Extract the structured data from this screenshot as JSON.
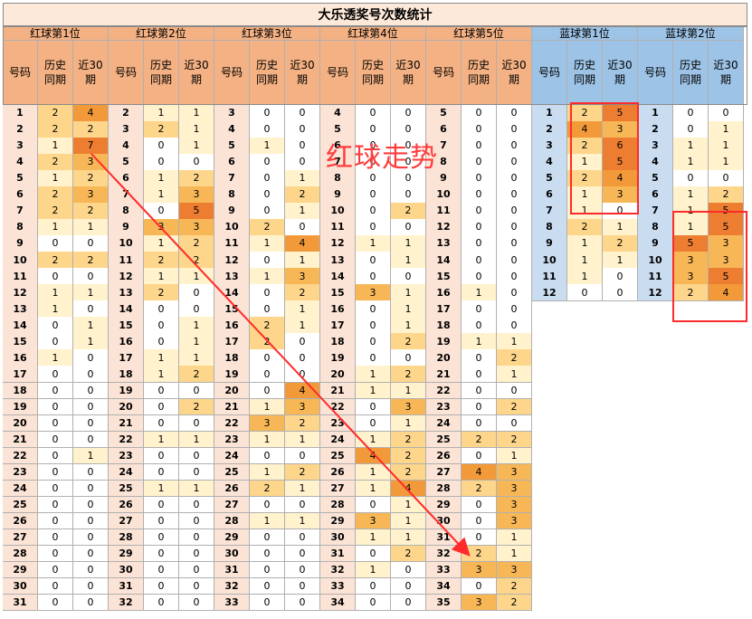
{
  "title": "大乐透奖号次数统计",
  "annotation": "红球走势",
  "groups": [
    {
      "name": "红球第1位",
      "kind": "red"
    },
    {
      "name": "红球第2位",
      "kind": "red"
    },
    {
      "name": "红球第3位",
      "kind": "red"
    },
    {
      "name": "红球第4位",
      "kind": "red"
    },
    {
      "name": "红球第5位",
      "kind": "red"
    },
    {
      "name": "蓝球第1位",
      "kind": "blue"
    },
    {
      "name": "蓝球第2位",
      "kind": "blue"
    }
  ],
  "col_headers": [
    "号码",
    "历史\n同期",
    "近30\n期"
  ],
  "colors": {
    "title_bg": "#fde9d9",
    "red_header": "#f4b183",
    "blue_header": "#9dc3e6",
    "red_num_bg": "#fbe3d6",
    "blue_num_bg": "#c9dcf0",
    "value_scale": [
      "#ffffff",
      "#fff2cc",
      "#fdd68b",
      "#f8b757",
      "#f29a3a",
      "#ed7d31"
    ],
    "highlight": "#ff2a2a"
  },
  "rows": {
    "red1": [
      [
        1,
        2,
        4
      ],
      [
        2,
        2,
        2
      ],
      [
        3,
        1,
        7
      ],
      [
        4,
        2,
        3
      ],
      [
        5,
        1,
        2
      ],
      [
        6,
        2,
        3
      ],
      [
        7,
        2,
        2
      ],
      [
        8,
        1,
        1
      ],
      [
        9,
        0,
        0
      ],
      [
        10,
        2,
        2
      ],
      [
        11,
        0,
        0
      ],
      [
        12,
        1,
        1
      ],
      [
        13,
        1,
        0
      ],
      [
        14,
        0,
        1
      ],
      [
        15,
        0,
        1
      ],
      [
        16,
        1,
        0
      ],
      [
        17,
        0,
        0
      ],
      [
        18,
        0,
        0
      ],
      [
        19,
        0,
        0
      ],
      [
        20,
        0,
        0
      ],
      [
        21,
        0,
        0
      ],
      [
        22,
        0,
        1
      ],
      [
        23,
        0,
        0
      ],
      [
        24,
        0,
        0
      ],
      [
        25,
        0,
        0
      ],
      [
        26,
        0,
        0
      ],
      [
        27,
        0,
        0
      ],
      [
        28,
        0,
        0
      ],
      [
        29,
        0,
        0
      ],
      [
        30,
        0,
        0
      ],
      [
        31,
        0,
        0
      ]
    ],
    "red2": [
      [
        2,
        1,
        1
      ],
      [
        3,
        2,
        1
      ],
      [
        4,
        0,
        1
      ],
      [
        5,
        0,
        0
      ],
      [
        6,
        1,
        2
      ],
      [
        7,
        1,
        3
      ],
      [
        8,
        0,
        5
      ],
      [
        9,
        3,
        3
      ],
      [
        10,
        1,
        2
      ],
      [
        11,
        2,
        2
      ],
      [
        12,
        1,
        1
      ],
      [
        13,
        2,
        0
      ],
      [
        14,
        0,
        0
      ],
      [
        15,
        0,
        1
      ],
      [
        16,
        0,
        1
      ],
      [
        17,
        1,
        1
      ],
      [
        18,
        1,
        2
      ],
      [
        19,
        0,
        0
      ],
      [
        20,
        0,
        2
      ],
      [
        21,
        0,
        0
      ],
      [
        22,
        1,
        1
      ],
      [
        23,
        0,
        0
      ],
      [
        24,
        0,
        0
      ],
      [
        25,
        1,
        1
      ],
      [
        26,
        0,
        0
      ],
      [
        27,
        0,
        0
      ],
      [
        28,
        0,
        0
      ],
      [
        29,
        0,
        0
      ],
      [
        30,
        0,
        0
      ],
      [
        31,
        0,
        0
      ],
      [
        32,
        0,
        0
      ]
    ],
    "red3": [
      [
        3,
        0,
        0
      ],
      [
        4,
        0,
        0
      ],
      [
        5,
        1,
        0
      ],
      [
        6,
        0,
        0
      ],
      [
        7,
        0,
        1
      ],
      [
        8,
        0,
        2
      ],
      [
        9,
        0,
        1
      ],
      [
        10,
        2,
        0
      ],
      [
        11,
        1,
        4
      ],
      [
        12,
        0,
        1
      ],
      [
        13,
        1,
        3
      ],
      [
        14,
        0,
        2
      ],
      [
        15,
        0,
        1
      ],
      [
        16,
        2,
        1
      ],
      [
        17,
        2,
        0
      ],
      [
        18,
        0,
        0
      ],
      [
        19,
        0,
        0
      ],
      [
        20,
        0,
        4
      ],
      [
        21,
        1,
        3
      ],
      [
        22,
        3,
        2
      ],
      [
        23,
        1,
        1
      ],
      [
        24,
        0,
        0
      ],
      [
        25,
        1,
        2
      ],
      [
        26,
        2,
        1
      ],
      [
        27,
        0,
        0
      ],
      [
        28,
        1,
        1
      ],
      [
        29,
        0,
        0
      ],
      [
        30,
        0,
        0
      ],
      [
        31,
        0,
        0
      ],
      [
        32,
        0,
        0
      ],
      [
        33,
        0,
        0
      ]
    ],
    "red4": [
      [
        4,
        0,
        0
      ],
      [
        5,
        0,
        0
      ],
      [
        6,
        0,
        0
      ],
      [
        7,
        0,
        0
      ],
      [
        8,
        0,
        0
      ],
      [
        9,
        0,
        0
      ],
      [
        10,
        0,
        2
      ],
      [
        11,
        0,
        0
      ],
      [
        12,
        1,
        1
      ],
      [
        13,
        0,
        1
      ],
      [
        14,
        0,
        0
      ],
      [
        15,
        3,
        1
      ],
      [
        16,
        0,
        1
      ],
      [
        17,
        0,
        1
      ],
      [
        18,
        0,
        2
      ],
      [
        19,
        0,
        0
      ],
      [
        20,
        1,
        2
      ],
      [
        21,
        1,
        1
      ],
      [
        22,
        0,
        3
      ],
      [
        23,
        0,
        1
      ],
      [
        24,
        1,
        2
      ],
      [
        25,
        4,
        2
      ],
      [
        26,
        1,
        2
      ],
      [
        27,
        1,
        4
      ],
      [
        28,
        0,
        1
      ],
      [
        29,
        3,
        1
      ],
      [
        30,
        1,
        1
      ],
      [
        31,
        0,
        2
      ],
      [
        32,
        1,
        0
      ],
      [
        33,
        0,
        0
      ],
      [
        34,
        0,
        0
      ]
    ],
    "red5": [
      [
        5,
        0,
        0
      ],
      [
        6,
        0,
        0
      ],
      [
        7,
        0,
        0
      ],
      [
        8,
        0,
        0
      ],
      [
        9,
        0,
        0
      ],
      [
        10,
        0,
        0
      ],
      [
        11,
        0,
        0
      ],
      [
        12,
        0,
        0
      ],
      [
        13,
        0,
        0
      ],
      [
        14,
        0,
        0
      ],
      [
        15,
        0,
        0
      ],
      [
        16,
        1,
        0
      ],
      [
        17,
        0,
        0
      ],
      [
        18,
        0,
        0
      ],
      [
        19,
        1,
        1
      ],
      [
        20,
        0,
        2
      ],
      [
        21,
        0,
        1
      ],
      [
        22,
        0,
        0
      ],
      [
        23,
        0,
        2
      ],
      [
        24,
        0,
        0
      ],
      [
        25,
        2,
        2
      ],
      [
        26,
        0,
        1
      ],
      [
        27,
        4,
        3
      ],
      [
        28,
        2,
        3
      ],
      [
        29,
        0,
        3
      ],
      [
        30,
        0,
        3
      ],
      [
        31,
        0,
        1
      ],
      [
        32,
        2,
        1
      ],
      [
        33,
        3,
        3
      ],
      [
        34,
        0,
        2
      ],
      [
        35,
        3,
        2
      ]
    ],
    "blue1": [
      [
        1,
        2,
        5
      ],
      [
        2,
        4,
        3
      ],
      [
        3,
        2,
        6
      ],
      [
        4,
        1,
        5
      ],
      [
        5,
        2,
        4
      ],
      [
        6,
        1,
        3
      ],
      [
        7,
        1,
        0
      ],
      [
        8,
        2,
        1
      ],
      [
        9,
        1,
        2
      ],
      [
        10,
        1,
        1
      ],
      [
        11,
        1,
        0
      ],
      [
        12,
        0,
        0
      ]
    ],
    "blue2": [
      [
        1,
        0,
        0
      ],
      [
        2,
        0,
        1
      ],
      [
        3,
        1,
        1
      ],
      [
        4,
        1,
        1
      ],
      [
        5,
        0,
        0
      ],
      [
        6,
        1,
        2
      ],
      [
        7,
        1,
        5
      ],
      [
        8,
        1,
        5
      ],
      [
        9,
        5,
        3
      ],
      [
        10,
        3,
        3
      ],
      [
        11,
        3,
        5
      ],
      [
        12,
        2,
        4
      ]
    ]
  }
}
